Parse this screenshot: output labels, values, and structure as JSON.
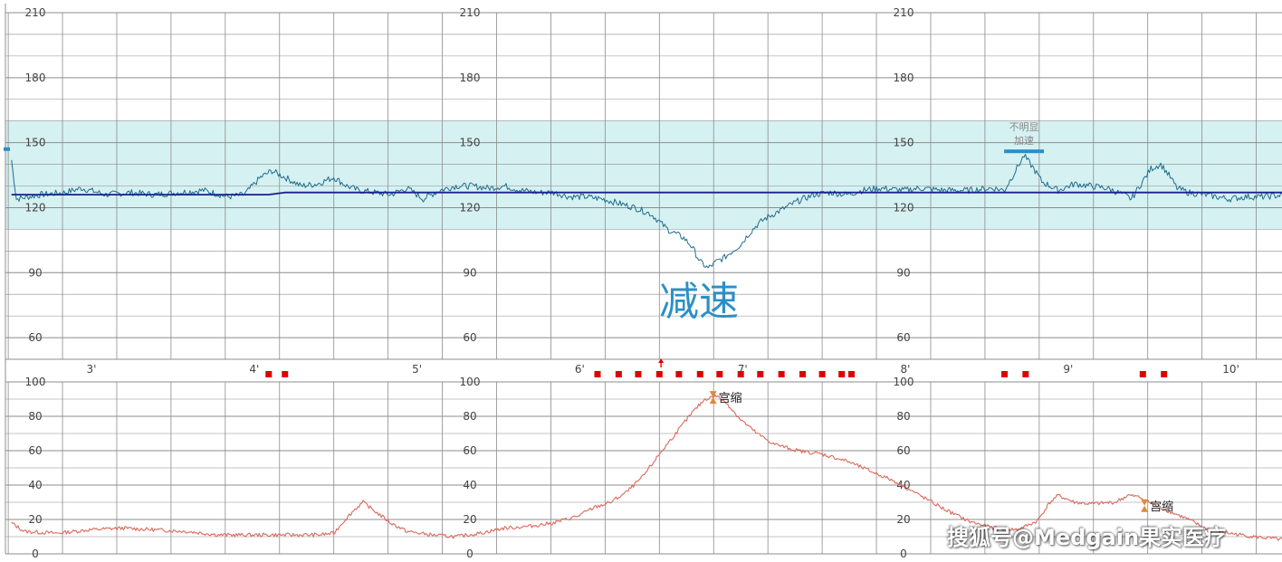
{
  "colors": {
    "top_bar": "#3fb4c0",
    "band_fill": "#d6f1f1",
    "fhr_line": "#1f6d90",
    "baseline": "#1a1f8c",
    "toco_line": "#d96a5c",
    "grid": "#8c8c8c",
    "movement_marker": "#e00000",
    "annotation_text": "#2a8fc8",
    "accel_marker": "#2a8fc8",
    "contraction_icon": "#e08a3a"
  },
  "chart_data": [
    {
      "type": "line",
      "name": "fhr",
      "y_ticks": [
        "210",
        "180",
        "150",
        "120",
        "90",
        "60"
      ],
      "ylim": [
        50,
        210
      ],
      "normal_band": [
        110,
        160
      ],
      "baseline_value": 127,
      "x_minute_labels": [
        "3'",
        "4'",
        "5'",
        "6'",
        "7'",
        "8'",
        "9'",
        "10'"
      ],
      "xlim_minutes": [
        2.5,
        10.36
      ],
      "series": [
        {
          "key": "fhr",
          "points": [
            [
              2.52,
              142
            ],
            [
              2.55,
              124
            ],
            [
              2.7,
              126
            ],
            [
              2.85,
              127
            ],
            [
              2.95,
              129
            ],
            [
              3.1,
              126
            ],
            [
              3.25,
              127
            ],
            [
              3.4,
              126
            ],
            [
              3.55,
              127
            ],
            [
              3.7,
              128
            ],
            [
              3.85,
              125
            ],
            [
              3.95,
              126
            ],
            [
              4.05,
              134
            ],
            [
              4.12,
              137
            ],
            [
              4.2,
              134
            ],
            [
              4.3,
              130
            ],
            [
              4.4,
              131
            ],
            [
              4.5,
              134
            ],
            [
              4.58,
              130
            ],
            [
              4.65,
              128
            ],
            [
              4.75,
              127
            ],
            [
              4.85,
              126
            ],
            [
              4.95,
              129
            ],
            [
              5.05,
              124
            ],
            [
              5.15,
              128
            ],
            [
              5.25,
              130
            ],
            [
              5.35,
              130
            ],
            [
              5.45,
              129
            ],
            [
              5.55,
              130
            ],
            [
              5.65,
              128
            ],
            [
              5.75,
              127
            ],
            [
              5.85,
              127
            ],
            [
              5.95,
              125
            ],
            [
              6.05,
              125
            ],
            [
              6.15,
              124
            ],
            [
              6.25,
              122
            ],
            [
              6.35,
              120
            ],
            [
              6.45,
              117
            ],
            [
              6.55,
              110
            ],
            [
              6.65,
              106
            ],
            [
              6.7,
              102
            ],
            [
              6.75,
              95
            ],
            [
              6.8,
              92
            ],
            [
              6.85,
              95
            ],
            [
              6.9,
              97
            ],
            [
              6.95,
              100
            ],
            [
              7.0,
              103
            ],
            [
              7.05,
              108
            ],
            [
              7.1,
              112
            ],
            [
              7.15,
              115
            ],
            [
              7.25,
              119
            ],
            [
              7.35,
              123
            ],
            [
              7.45,
              126
            ],
            [
              7.55,
              127
            ],
            [
              7.65,
              126
            ],
            [
              7.75,
              128
            ],
            [
              7.85,
              129
            ],
            [
              8.0,
              128
            ],
            [
              8.1,
              129
            ],
            [
              8.25,
              128
            ],
            [
              8.4,
              128
            ],
            [
              8.55,
              129
            ],
            [
              8.62,
              128
            ],
            [
              8.68,
              136
            ],
            [
              8.74,
              144
            ],
            [
              8.8,
              138
            ],
            [
              8.85,
              132
            ],
            [
              8.9,
              130
            ],
            [
              8.95,
              128
            ],
            [
              9.05,
              131
            ],
            [
              9.15,
              130
            ],
            [
              9.25,
              129
            ],
            [
              9.35,
              126
            ],
            [
              9.4,
              124
            ],
            [
              9.45,
              130
            ],
            [
              9.52,
              138
            ],
            [
              9.58,
              140
            ],
            [
              9.63,
              135
            ],
            [
              9.68,
              129
            ],
            [
              9.75,
              127
            ],
            [
              9.85,
              126
            ],
            [
              10.0,
              124
            ],
            [
              10.1,
              125
            ],
            [
              10.2,
              125
            ],
            [
              10.36,
              126
            ]
          ]
        },
        {
          "key": "baseline",
          "points": [
            [
              2.52,
              126
            ],
            [
              4.1,
              126
            ],
            [
              4.2,
              127
            ],
            [
              10.36,
              127
            ]
          ]
        }
      ],
      "annotations": {
        "deceleration_label": "减速",
        "acceleration_note": "不明显加速",
        "acceleration_at_minute": 8.74,
        "acceleration_level": 146
      },
      "movement_markers_minutes": [
        4.1,
        4.2,
        6.12,
        6.25,
        6.37,
        6.5,
        6.62,
        6.75,
        6.87,
        7.0,
        7.12,
        7.25,
        7.38,
        7.5,
        7.62,
        7.68,
        8.62,
        8.75,
        9.47,
        9.6
      ],
      "event_arrow_minute": 6.51
    },
    {
      "type": "line",
      "name": "toco",
      "y_ticks": [
        "100",
        "80",
        "60",
        "40",
        "20",
        "0"
      ],
      "ylim": [
        0,
        100
      ],
      "series": [
        {
          "key": "toco",
          "points": [
            [
              2.52,
              18
            ],
            [
              2.6,
              13
            ],
            [
              2.8,
              12
            ],
            [
              3.0,
              14
            ],
            [
              3.2,
              15
            ],
            [
              3.4,
              14
            ],
            [
              3.6,
              13
            ],
            [
              3.8,
              11
            ],
            [
              4.0,
              11
            ],
            [
              4.2,
              11
            ],
            [
              4.4,
              11
            ],
            [
              4.5,
              12
            ],
            [
              4.57,
              20
            ],
            [
              4.63,
              26
            ],
            [
              4.68,
              30
            ],
            [
              4.75,
              25
            ],
            [
              4.85,
              18
            ],
            [
              4.95,
              13
            ],
            [
              5.1,
              11
            ],
            [
              5.25,
              10
            ],
            [
              5.4,
              12
            ],
            [
              5.55,
              15
            ],
            [
              5.7,
              16
            ],
            [
              5.85,
              18
            ],
            [
              6.0,
              22
            ],
            [
              6.1,
              27
            ],
            [
              6.2,
              30
            ],
            [
              6.3,
              36
            ],
            [
              6.4,
              45
            ],
            [
              6.5,
              58
            ],
            [
              6.6,
              70
            ],
            [
              6.7,
              82
            ],
            [
              6.78,
              90
            ],
            [
              6.85,
              92
            ],
            [
              6.92,
              87
            ],
            [
              7.0,
              78
            ],
            [
              7.1,
              70
            ],
            [
              7.2,
              64
            ],
            [
              7.35,
              60
            ],
            [
              7.5,
              58
            ],
            [
              7.65,
              54
            ],
            [
              7.8,
              48
            ],
            [
              7.95,
              42
            ],
            [
              8.1,
              34
            ],
            [
              8.25,
              26
            ],
            [
              8.4,
              19
            ],
            [
              8.55,
              15
            ],
            [
              8.7,
              14
            ],
            [
              8.82,
              19
            ],
            [
              8.9,
              30
            ],
            [
              8.95,
              34
            ],
            [
              9.05,
              30
            ],
            [
              9.15,
              29
            ],
            [
              9.3,
              30
            ],
            [
              9.38,
              34
            ],
            [
              9.45,
              33
            ],
            [
              9.55,
              28
            ],
            [
              9.65,
              24
            ],
            [
              9.75,
              20
            ],
            [
              9.85,
              15
            ],
            [
              10.0,
              12
            ],
            [
              10.15,
              10
            ],
            [
              10.36,
              8
            ]
          ]
        }
      ],
      "annotations": {
        "contraction_label_1": "宫缩",
        "contraction_1_at_minute": 6.83,
        "contraction_label_2": "宫缩",
        "contraction_2_at_minute": 9.48
      }
    }
  ],
  "watermark": "搜狐号@Medgain果实医疗"
}
